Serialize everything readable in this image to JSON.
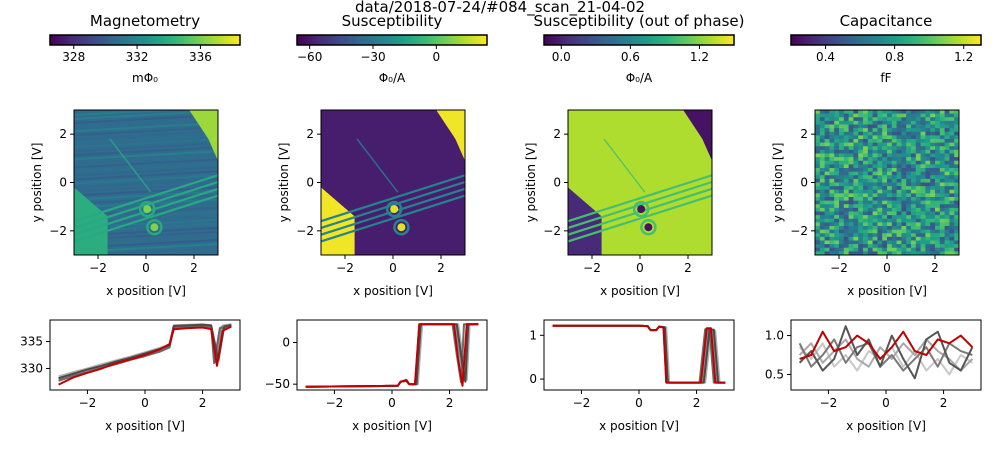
{
  "figure": {
    "suptitle": "data/2018-07-24/#084_scan_21-04-02"
  },
  "chart_data": [
    {
      "type": "heatmap",
      "title": "Magnetometry",
      "colorbar": {
        "label": "mΦ₀",
        "range": [
          326.5,
          338.5
        ],
        "ticks": [
          328,
          332,
          336
        ],
        "tick_labels": [
          "328",
          "332",
          "336"
        ],
        "colormap": "viridis"
      },
      "xlabel": "x position [V]",
      "ylabel": "y position [V]",
      "xlim": [
        -3,
        3
      ],
      "ylim": [
        -3,
        3
      ],
      "xticks": [
        -2,
        0,
        2
      ],
      "yticks": [
        -2,
        0,
        2
      ],
      "xtick_labels": [
        "−2",
        "0",
        "2"
      ],
      "ytick_labels": [
        "−2",
        "0",
        "2"
      ]
    },
    {
      "type": "heatmap",
      "title": "Susceptibility",
      "colorbar": {
        "label": "Φ₀/A",
        "range": [
          -66,
          24
        ],
        "ticks": [
          -60,
          -30,
          0
        ],
        "tick_labels": [
          "−60",
          "−30",
          "0"
        ],
        "colormap": "viridis"
      },
      "xlabel": "x position [V]",
      "ylabel": "y position [V]",
      "xlim": [
        -3,
        3
      ],
      "ylim": [
        -3,
        3
      ],
      "xticks": [
        -2,
        0,
        2
      ],
      "yticks": [
        -2,
        0,
        2
      ],
      "xtick_labels": [
        "−2",
        "0",
        "2"
      ],
      "ytick_labels": [
        "−2",
        "0",
        "2"
      ]
    },
    {
      "type": "heatmap",
      "title": "Susceptibility (out of phase)",
      "colorbar": {
        "label": "Φ₀/A",
        "range": [
          -0.15,
          1.5
        ],
        "ticks": [
          0.0,
          0.6,
          1.2
        ],
        "tick_labels": [
          "0.0",
          "0.6",
          "1.2"
        ],
        "colormap": "viridis"
      },
      "xlabel": "x position [V]",
      "ylabel": "y position [V]",
      "xlim": [
        -3,
        3
      ],
      "ylim": [
        -3,
        3
      ],
      "xticks": [
        -2,
        0,
        2
      ],
      "yticks": [
        -2,
        0,
        2
      ],
      "xtick_labels": [
        "−2",
        "0",
        "2"
      ],
      "ytick_labels": [
        "−2",
        "0",
        "2"
      ]
    },
    {
      "type": "heatmap",
      "title": "Capacitance",
      "colorbar": {
        "label": "fF",
        "range": [
          0.2,
          1.3
        ],
        "ticks": [
          0.4,
          0.8,
          1.2
        ],
        "tick_labels": [
          "0.4",
          "0.8",
          "1.2"
        ],
        "colormap": "viridis"
      },
      "xlabel": "x position [V]",
      "ylabel": "y position [V]",
      "xlim": [
        -3,
        3
      ],
      "ylim": [
        -3,
        3
      ],
      "xticks": [
        -2,
        0,
        2
      ],
      "yticks": [
        -2,
        0,
        2
      ],
      "xtick_labels": [
        "−2",
        "0",
        "2"
      ],
      "ytick_labels": [
        "−2",
        "0",
        "2"
      ]
    },
    {
      "type": "line",
      "xlabel": "x position [V]",
      "xlim": [
        -3.3,
        3.3
      ],
      "ylim": [
        326,
        339
      ],
      "xticks": [
        -2,
        0,
        2
      ],
      "yticks": [
        330,
        335
      ],
      "xtick_labels": [
        "−2",
        "0",
        "2"
      ],
      "ytick_labels": [
        "330",
        "335"
      ],
      "series_colors": [
        "#b0b0b0",
        "#8c8c8c",
        "#6a6a6a",
        "#4a4a4a",
        "#c00000"
      ],
      "series": [
        {
          "x": [
            -3,
            -2.5,
            -2,
            -1.5,
            -1,
            -0.5,
            0,
            0.5,
            0.85,
            1.0,
            1.5,
            2.0,
            2.3,
            2.5,
            2.7,
            3.0
          ],
          "y": [
            328.5,
            329.3,
            330.0,
            330.8,
            331.5,
            332.2,
            333.0,
            333.8,
            334.5,
            338.0,
            338.1,
            338.2,
            338.0,
            331.8,
            338.0,
            338.2
          ]
        },
        {
          "x": [
            -3,
            -2.5,
            -2,
            -1.5,
            -1,
            -0.5,
            0,
            0.5,
            0.85,
            1.0,
            1.5,
            2.0,
            2.3,
            2.45,
            2.65,
            3.0
          ],
          "y": [
            328.0,
            328.9,
            329.7,
            330.4,
            331.1,
            331.9,
            332.6,
            333.4,
            334.2,
            337.8,
            337.9,
            338.0,
            337.9,
            331.2,
            337.7,
            338.0
          ]
        },
        {
          "x": [
            -3,
            -2.5,
            -2,
            -1.5,
            -1,
            -0.5,
            0,
            0.5,
            0.85,
            1.0,
            1.5,
            2.0,
            2.3,
            2.4,
            2.6,
            3.0
          ],
          "y": [
            327.7,
            328.6,
            329.3,
            330.1,
            330.8,
            331.6,
            332.3,
            333.1,
            333.9,
            337.6,
            337.7,
            337.8,
            337.7,
            331.0,
            337.5,
            337.8
          ]
        },
        {
          "x": [
            -3,
            -2.5,
            -2,
            -1.5,
            -1,
            -0.5,
            0,
            0.5,
            0.85,
            1.0,
            1.5,
            2.0,
            2.3,
            2.55,
            2.75,
            3.0
          ],
          "y": [
            328.2,
            329.0,
            329.8,
            330.5,
            331.3,
            332.0,
            332.8,
            333.6,
            334.3,
            337.9,
            338.0,
            338.1,
            338.0,
            331.5,
            337.8,
            338.1
          ]
        },
        {
          "x": [
            -3,
            -2.5,
            -2,
            -1.5,
            -1,
            -0.5,
            0,
            0.5,
            0.85,
            1.0,
            1.5,
            2.0,
            2.3,
            2.5,
            2.7,
            3.0
          ],
          "y": [
            327.0,
            328.3,
            329.2,
            330.0,
            331.0,
            331.7,
            332.5,
            333.5,
            334.5,
            337.3,
            337.5,
            337.6,
            337.3,
            330.5,
            337.0,
            337.8
          ]
        }
      ]
    },
    {
      "type": "line",
      "xlabel": "x position [V]",
      "xlim": [
        -3.3,
        3.3
      ],
      "ylim": [
        -57,
        27
      ],
      "xticks": [
        -2,
        0,
        2
      ],
      "yticks": [
        0,
        -50
      ],
      "xtick_labels": [
        "−2",
        "0",
        "2"
      ],
      "ytick_labels": [
        "0",
        "−50"
      ],
      "series_colors": [
        "#b0b0b0",
        "#8c8c8c",
        "#6a6a6a",
        "#4a4a4a",
        "#c00000"
      ],
      "series": [
        {
          "x": [
            -3,
            0.2,
            0.3,
            0.5,
            0.6,
            0.9,
            1.05,
            2.3,
            2.45,
            2.6,
            2.7,
            3.0
          ],
          "y": [
            -53,
            -52,
            -47,
            -46,
            -50,
            -50,
            22,
            22,
            -15,
            -45,
            22,
            22
          ]
        },
        {
          "x": [
            -3,
            0.2,
            0.3,
            0.5,
            0.6,
            0.85,
            1.0,
            2.2,
            2.35,
            2.5,
            2.6,
            3.0
          ],
          "y": [
            -53,
            -52,
            -47,
            -46,
            -50,
            -50,
            22,
            22,
            -15,
            -46,
            22,
            22
          ]
        },
        {
          "x": [
            -3,
            0.2,
            0.3,
            0.5,
            0.6,
            0.8,
            0.95,
            2.1,
            2.25,
            2.4,
            2.5,
            3.0
          ],
          "y": [
            -53,
            -52,
            -47,
            -46,
            -50,
            -50,
            22,
            22,
            -15,
            -48,
            22,
            22
          ]
        },
        {
          "x": [
            -3,
            0.2,
            0.3,
            0.5,
            0.6,
            0.85,
            1.0,
            2.25,
            2.4,
            2.55,
            2.65,
            3.0
          ],
          "y": [
            -53,
            -52,
            -47,
            -46,
            -50,
            -50,
            22,
            22,
            -15,
            -47,
            22,
            22
          ]
        },
        {
          "x": [
            -3,
            0.2,
            0.3,
            0.5,
            0.6,
            0.8,
            0.95,
            2.15,
            2.3,
            2.45,
            2.6,
            3.0
          ],
          "y": [
            -53,
            -52,
            -47,
            -45,
            -50,
            -50,
            22,
            22,
            -20,
            -52,
            22,
            22
          ]
        }
      ]
    },
    {
      "type": "line",
      "xlabel": "x position [V]",
      "xlim": [
        -3.3,
        3.3
      ],
      "ylim": [
        -0.25,
        1.35
      ],
      "xticks": [
        -2,
        0,
        2
      ],
      "yticks": [
        0,
        1
      ],
      "xtick_labels": [
        "−2",
        "0",
        "2"
      ],
      "ytick_labels": [
        "0",
        "1"
      ],
      "series_colors": [
        "#b0b0b0",
        "#8c8c8c",
        "#6a6a6a",
        "#4a4a4a",
        "#c00000"
      ],
      "series": [
        {
          "x": [
            -3,
            0,
            0.3,
            0.4,
            0.6,
            0.7,
            0.95,
            1.05,
            2.3,
            2.5,
            2.65,
            2.8,
            3.0
          ],
          "y": [
            1.22,
            1.22,
            1.21,
            1.12,
            1.12,
            1.2,
            1.18,
            -0.08,
            -0.08,
            1.1,
            1.1,
            -0.08,
            -0.08
          ]
        },
        {
          "x": [
            -3,
            0,
            0.3,
            0.4,
            0.6,
            0.7,
            0.9,
            1.0,
            2.2,
            2.4,
            2.55,
            2.7,
            3.0
          ],
          "y": [
            1.22,
            1.22,
            1.21,
            1.12,
            1.12,
            1.2,
            1.18,
            -0.08,
            -0.08,
            1.12,
            1.12,
            -0.08,
            -0.08
          ]
        },
        {
          "x": [
            -3,
            0,
            0.3,
            0.4,
            0.6,
            0.7,
            0.85,
            0.95,
            2.1,
            2.3,
            2.45,
            2.6,
            3.0
          ],
          "y": [
            1.22,
            1.22,
            1.21,
            1.12,
            1.12,
            1.2,
            1.18,
            -0.08,
            -0.08,
            1.14,
            1.14,
            -0.08,
            -0.08
          ]
        },
        {
          "x": [
            -3,
            0,
            0.3,
            0.4,
            0.6,
            0.7,
            0.9,
            1.0,
            2.25,
            2.45,
            2.6,
            2.75,
            3.0
          ],
          "y": [
            1.22,
            1.22,
            1.21,
            1.12,
            1.12,
            1.2,
            1.18,
            -0.08,
            -0.08,
            1.13,
            1.13,
            -0.08,
            -0.08
          ]
        },
        {
          "x": [
            -3,
            0,
            0.3,
            0.4,
            0.6,
            0.7,
            0.85,
            0.95,
            2.15,
            2.35,
            2.5,
            2.65,
            3.0
          ],
          "y": [
            1.22,
            1.22,
            1.21,
            1.12,
            1.12,
            1.2,
            1.18,
            -0.08,
            -0.08,
            1.16,
            1.16,
            -0.08,
            -0.08
          ]
        }
      ]
    },
    {
      "type": "line",
      "xlabel": "x position [V]",
      "xlim": [
        -3.3,
        3.3
      ],
      "ylim": [
        0.3,
        1.2
      ],
      "xticks": [
        -2,
        0,
        2
      ],
      "yticks": [
        0.5,
        1.0
      ],
      "xtick_labels": [
        "−2",
        "0",
        "2"
      ],
      "ytick_labels": [
        "0.5",
        "1.0"
      ],
      "series_colors": [
        "#c8c8c8",
        "#a8a8a8",
        "#7a7a7a",
        "#555555",
        "#c00000"
      ],
      "series": [
        {
          "x": [
            -3,
            -2.6,
            -2.2,
            -1.8,
            -1.4,
            -1.0,
            -0.6,
            -0.2,
            0.2,
            0.6,
            1.0,
            1.4,
            1.8,
            2.2,
            2.6,
            3.0
          ],
          "y": [
            0.85,
            0.7,
            0.9,
            0.6,
            0.75,
            0.55,
            0.8,
            0.7,
            0.85,
            0.6,
            0.8,
            0.55,
            0.7,
            0.5,
            0.75,
            0.65
          ]
        },
        {
          "x": [
            -3,
            -2.6,
            -2.2,
            -1.8,
            -1.4,
            -1.0,
            -0.6,
            -0.2,
            0.2,
            0.6,
            1.0,
            1.4,
            1.8,
            2.2,
            2.6,
            3.0
          ],
          "y": [
            0.75,
            0.9,
            0.65,
            0.8,
            0.95,
            0.7,
            0.6,
            0.85,
            0.7,
            0.9,
            0.75,
            0.95,
            0.8,
            0.7,
            0.55,
            0.7
          ]
        },
        {
          "x": [
            -3,
            -2.6,
            -2.2,
            -1.8,
            -1.4,
            -1.0,
            -0.6,
            -0.2,
            0.2,
            0.6,
            1.0,
            1.4,
            1.8,
            2.2,
            2.6,
            3.0
          ],
          "y": [
            0.9,
            0.6,
            0.75,
            0.95,
            0.65,
            0.85,
            0.9,
            0.6,
            0.75,
            0.55,
            0.7,
            0.85,
            0.6,
            0.9,
            0.8,
            0.75
          ]
        },
        {
          "x": [
            -3,
            -2.6,
            -2.2,
            -1.8,
            -1.4,
            -1.0,
            -0.6,
            -0.2,
            0.2,
            0.6,
            1.0,
            1.4,
            1.8,
            2.2,
            2.6,
            3.0
          ],
          "y": [
            0.65,
            0.8,
            0.55,
            0.7,
            1.12,
            0.75,
            0.95,
            0.6,
            1.0,
            0.7,
            0.45,
            0.95,
            1.05,
            0.65,
            0.55,
            0.85
          ]
        },
        {
          "x": [
            -3,
            -2.6,
            -2.2,
            -1.8,
            -1.4,
            -1.0,
            -0.6,
            -0.2,
            0.2,
            0.6,
            1.0,
            1.4,
            1.8,
            2.2,
            2.6,
            3.0
          ],
          "y": [
            0.7,
            0.75,
            1.05,
            0.8,
            0.85,
            1.0,
            0.9,
            0.7,
            0.85,
            1.05,
            0.8,
            0.75,
            0.95,
            0.9,
            1.0,
            0.85
          ]
        }
      ]
    }
  ]
}
